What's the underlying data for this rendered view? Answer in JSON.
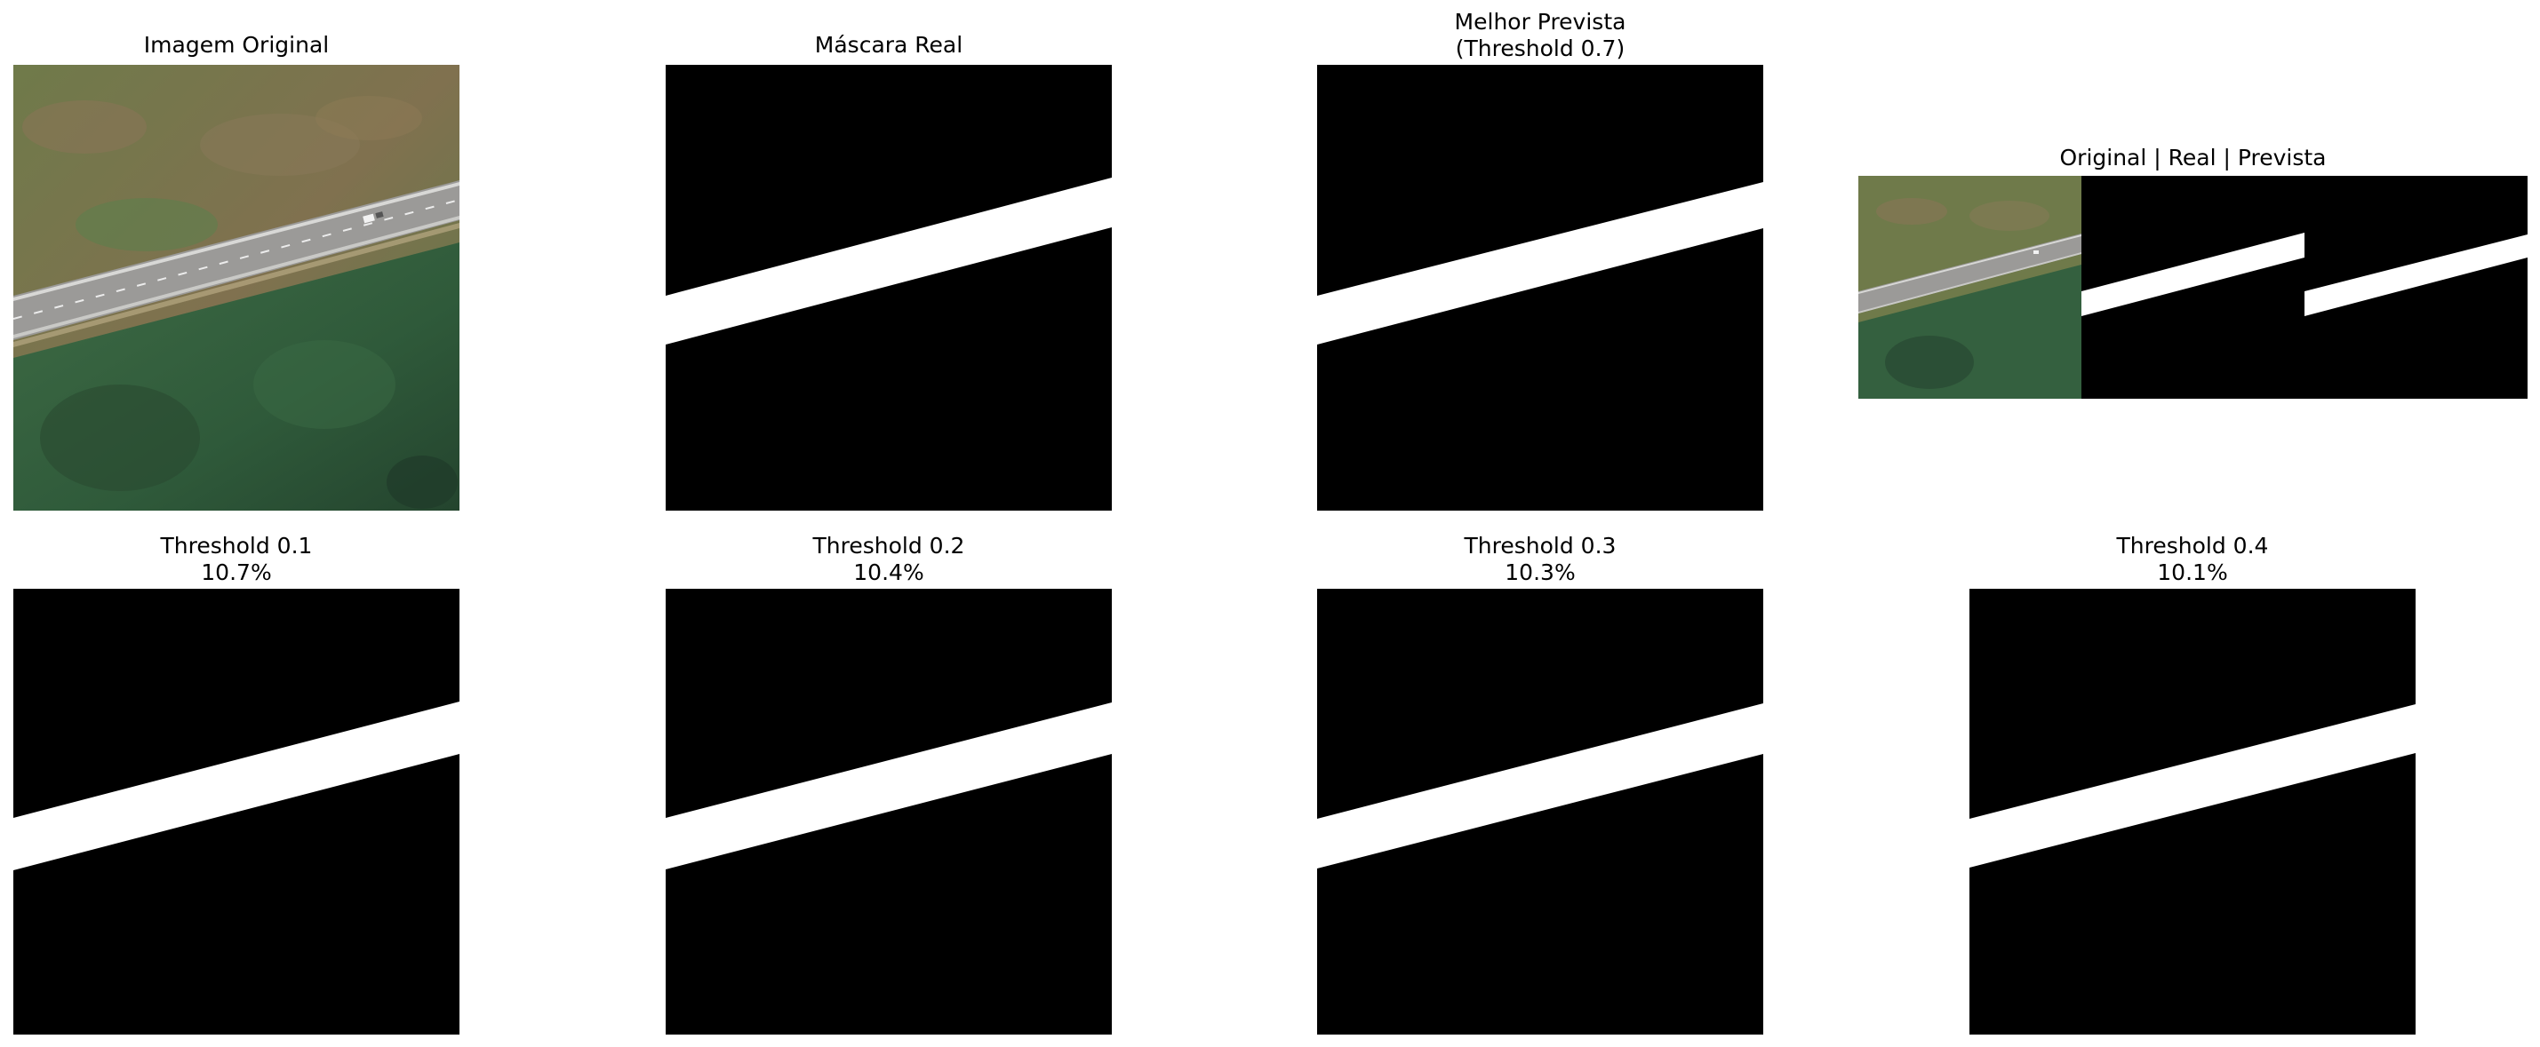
{
  "panels": {
    "original": {
      "title": "Imagem Original"
    },
    "mask_real": {
      "title": "Máscara Real"
    },
    "best_pred": {
      "title": "Melhor Prevista\n(Threshold 0.7)"
    },
    "combo": {
      "title": "Original | Real | Prevista"
    },
    "thresholds": [
      {
        "title": "Threshold 0.1\n10.7%"
      },
      {
        "title": "Threshold 0.2\n10.4%"
      },
      {
        "title": "Threshold 0.3\n10.3%"
      },
      {
        "title": "Threshold 0.4\n10.1%"
      }
    ]
  },
  "colors": {
    "background": "#ffffff",
    "mask_bg": "#000000",
    "mask_fg": "#ffffff"
  }
}
